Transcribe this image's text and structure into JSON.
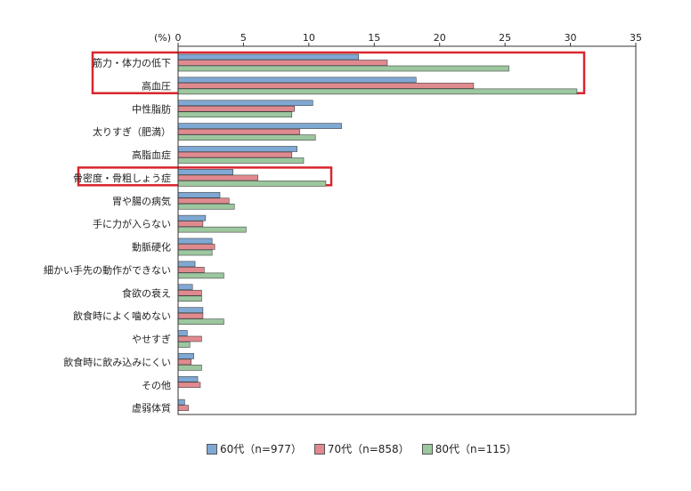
{
  "chart_data": {
    "type": "bar",
    "orientation": "horizontal",
    "unit_label": "(%)",
    "xlim": [
      0,
      35
    ],
    "xticks": [
      0,
      5,
      10,
      15,
      20,
      25,
      30,
      35
    ],
    "categories": [
      "筋力・体力の低下",
      "高血圧",
      "中性脂肪",
      "太りすぎ（肥満）",
      "高脂血症",
      "骨密度・骨粗しょう症",
      "胃や腸の病気",
      "手に力が入らない",
      "動脈硬化",
      "細かい手先の動作ができない",
      "食欲の衰え",
      "飲食時によく噛めない",
      "やせすぎ",
      "飲食時に飲み込みにくい",
      "その他",
      "虚弱体質"
    ],
    "series": [
      {
        "name": "60代（n=977）",
        "color": "#7fa8d4",
        "values": [
          13.8,
          18.2,
          10.3,
          12.5,
          9.1,
          4.2,
          3.2,
          2.1,
          2.6,
          1.3,
          1.1,
          1.9,
          0.7,
          1.2,
          1.5,
          0.5
        ]
      },
      {
        "name": "70代（n=858）",
        "color": "#e08a8f",
        "values": [
          16.0,
          22.6,
          8.9,
          9.3,
          8.7,
          6.1,
          3.9,
          1.9,
          2.8,
          2.0,
          1.8,
          1.9,
          1.8,
          1.0,
          1.7,
          0.8
        ]
      },
      {
        "name": "80代（n=115）",
        "color": "#9cc79f",
        "values": [
          25.3,
          30.5,
          8.7,
          10.5,
          9.6,
          11.3,
          4.3,
          5.2,
          2.6,
          3.5,
          1.8,
          3.5,
          0.9,
          1.8,
          0,
          0
        ]
      }
    ],
    "highlighted_categories": [
      "筋力・体力の低下",
      "高血圧",
      "骨密度・骨粗しょう症"
    ],
    "highlight_color": "#d9262e",
    "grid": false,
    "legend_position": "bottom"
  }
}
